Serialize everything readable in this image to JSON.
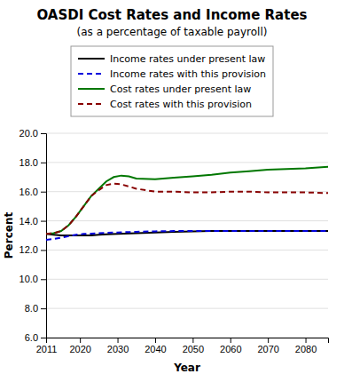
{
  "chart_data": {
    "type": "line",
    "title": "OASDI Cost Rates and Income Rates",
    "subtitle": "(as a percentage of taxable payroll)",
    "x_label": "Year",
    "y_label": "Percent",
    "xlim": [
      2011,
      2086
    ],
    "xticks": [
      2011,
      2020,
      2030,
      2040,
      2050,
      2060,
      2070,
      2080
    ],
    "ylim": [
      6.0,
      20.0
    ],
    "yticks": [
      {
        "value": 6.0,
        "label": "6.0"
      },
      {
        "value": 8.0,
        "label": "8.0"
      },
      {
        "value": 10.0,
        "label": "10.0"
      },
      {
        "value": 12.0,
        "label": "12.0"
      },
      {
        "value": 14.0,
        "label": "14.0"
      },
      {
        "value": 16.0,
        "label": "16.0"
      },
      {
        "value": 18.0,
        "label": "18.0"
      },
      {
        "value": 20.0,
        "label": "20.0"
      }
    ],
    "grid": true,
    "legend": "top",
    "series": [
      {
        "name": "Income rates under present law",
        "color": "#000000",
        "line_style": "solid",
        "x": [
          2011,
          2013,
          2015,
          2017,
          2019,
          2021,
          2023,
          2025,
          2027,
          2030,
          2035,
          2040,
          2045,
          2050,
          2055,
          2060,
          2065,
          2070,
          2075,
          2080,
          2086
        ],
        "values": [
          13.1,
          13.05,
          13.0,
          13.0,
          13.0,
          13.0,
          13.0,
          13.05,
          13.08,
          13.1,
          13.15,
          13.2,
          13.25,
          13.28,
          13.3,
          13.3,
          13.3,
          13.3,
          13.3,
          13.3,
          13.3
        ]
      },
      {
        "name": "Income rates with this provision",
        "color": "#0000dd",
        "line_style": "dashed",
        "x": [
          2011,
          2013,
          2015,
          2017,
          2019,
          2021,
          2023,
          2025,
          2027,
          2030,
          2035,
          2040,
          2045,
          2050,
          2055,
          2060,
          2065,
          2070,
          2075,
          2080,
          2086
        ],
        "values": [
          12.7,
          12.75,
          12.85,
          12.95,
          13.05,
          13.1,
          13.12,
          13.15,
          13.18,
          13.2,
          13.25,
          13.28,
          13.3,
          13.3,
          13.3,
          13.3,
          13.3,
          13.3,
          13.3,
          13.3,
          13.3
        ]
      },
      {
        "name": "Cost rates under present law",
        "color": "#007700",
        "line_style": "solid",
        "x": [
          2011,
          2013,
          2015,
          2017,
          2019,
          2021,
          2023,
          2025,
          2027,
          2029,
          2031,
          2033,
          2035,
          2040,
          2045,
          2050,
          2055,
          2060,
          2065,
          2070,
          2075,
          2080,
          2086
        ],
        "values": [
          13.1,
          13.15,
          13.3,
          13.7,
          14.3,
          15.0,
          15.7,
          16.2,
          16.7,
          17.0,
          17.1,
          17.05,
          16.9,
          16.85,
          16.95,
          17.05,
          17.15,
          17.3,
          17.4,
          17.5,
          17.55,
          17.6,
          17.7
        ]
      },
      {
        "name": "Cost rates with this provision",
        "color": "#880000",
        "line_style": "dashed",
        "x": [
          2011,
          2013,
          2015,
          2017,
          2019,
          2021,
          2023,
          2025,
          2027,
          2029,
          2031,
          2033,
          2035,
          2040,
          2045,
          2050,
          2055,
          2060,
          2065,
          2070,
          2075,
          2080,
          2086
        ],
        "values": [
          13.1,
          13.15,
          13.3,
          13.7,
          14.3,
          15.0,
          15.7,
          16.1,
          16.45,
          16.55,
          16.5,
          16.35,
          16.2,
          16.0,
          16.0,
          15.95,
          15.95,
          16.0,
          16.0,
          15.95,
          15.95,
          15.95,
          15.9
        ]
      }
    ]
  }
}
